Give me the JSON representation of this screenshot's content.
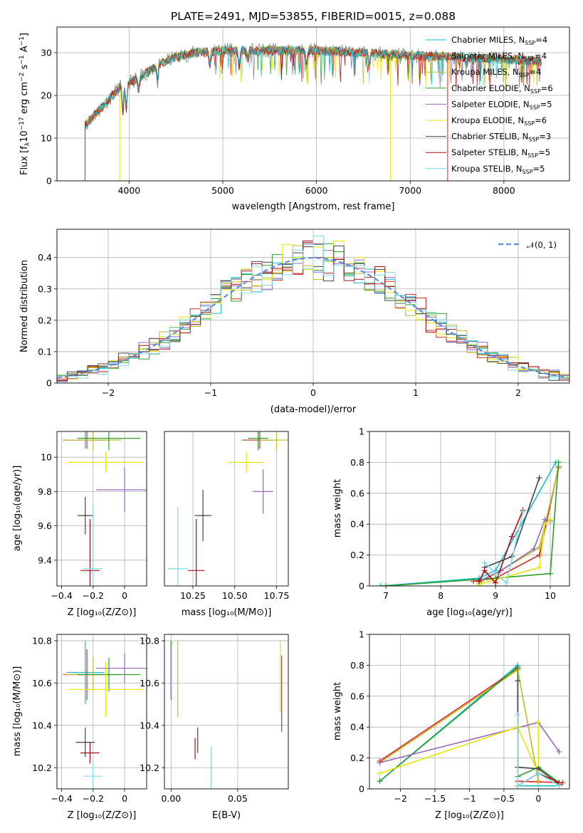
{
  "title": "PLATE=2491, MJD=53855, FIBERID=0015, z=0.088",
  "colors": {
    "Chabrier MILES": "#17becf",
    "Salpeter MILES": "#d62728",
    "Kroupa MILES": "#bcbd22",
    "Chabrier ELODIE": "#2ca02c",
    "Salpeter ELODIE": "#9467bd",
    "Kroupa ELODIE": "#e6e600",
    "Chabrier STELIB": "#444444",
    "Salpeter STELIB": "#a50f15",
    "Kroupa STELIB": "#7fd8e6"
  },
  "legend_spectrum": [
    {
      "main": "Chabrier MILES, N",
      "sub": "SSP",
      "tail": "=4"
    },
    {
      "main": "Salpeter MILES, N",
      "sub": "SSP",
      "tail": "=4"
    },
    {
      "main": "Kroupa MILES, N",
      "sub": "SSP",
      "tail": "=4"
    },
    {
      "main": "Chabrier ELODIE, N",
      "sub": "SSP",
      "tail": "=6"
    },
    {
      "main": "Salpeter ELODIE, N",
      "sub": "SSP",
      "tail": "=5"
    },
    {
      "main": "Kroupa ELODIE, N",
      "sub": "SSP",
      "tail": "=6"
    },
    {
      "main": "Chabrier STELIB, N",
      "sub": "SSP",
      "tail": "=3"
    },
    {
      "main": "Salpeter STELIB, N",
      "sub": "SSP",
      "tail": "=5"
    },
    {
      "main": "Kroupa STELIB, N",
      "sub": "SSP",
      "tail": "=5"
    }
  ],
  "legend_hist": "𝒩(0, 1)",
  "chart_data": [
    {
      "type": "line",
      "xlabel": "wavelength [Angstrom, rest frame]",
      "ylabel_parts": [
        "Flux [f",
        "λ",
        "10",
        "−17",
        " erg cm",
        "−2",
        " s",
        "−1",
        " A",
        "−1",
        "]"
      ],
      "xlim": [
        3230,
        8700
      ],
      "ylim": [
        0,
        36
      ],
      "xticks": [
        4000,
        5000,
        6000,
        7000,
        8000
      ],
      "yticks": [
        0,
        10,
        20,
        30
      ],
      "continuum_points": [
        [
          3530,
          13
        ],
        [
          3700,
          17
        ],
        [
          3900,
          22
        ],
        [
          4100,
          24
        ],
        [
          4300,
          27
        ],
        [
          4500,
          29
        ],
        [
          4700,
          30
        ],
        [
          5000,
          30.5
        ],
        [
          5500,
          30.5
        ],
        [
          6000,
          30.5
        ],
        [
          6500,
          30
        ],
        [
          7000,
          29.3
        ],
        [
          7500,
          29
        ],
        [
          8000,
          28.5
        ],
        [
          8400,
          28
        ]
      ],
      "absorption_lines": [
        [
          3934,
          6
        ],
        [
          3969,
          6
        ],
        [
          4102,
          3
        ],
        [
          4304,
          4
        ],
        [
          4861,
          3
        ],
        [
          5175,
          4
        ],
        [
          5270,
          2
        ],
        [
          5893,
          4
        ],
        [
          6563,
          3
        ],
        [
          7600,
          2
        ]
      ]
    },
    {
      "type": "line",
      "xlabel": "(data-model)/error",
      "ylabel": "Normed distribution",
      "xlim": [
        -2.5,
        2.5
      ],
      "ylim": [
        0,
        0.49
      ],
      "xticks": [
        -2,
        -1,
        0,
        1,
        2
      ],
      "yticks": [
        0.0,
        0.1,
        0.2,
        0.3,
        0.4
      ],
      "bin_width": 0.1,
      "gaussian": "N(0,1)"
    },
    {
      "type": "scatter",
      "xlabel": "Z [log₁₀(Z/Z⊙)]",
      "ylabel": "age  [log₁₀(age/yr)]",
      "xlim": [
        -0.43,
        0.14
      ],
      "ylim": [
        9.25,
        10.15
      ],
      "xticks": [
        -0.4,
        -0.2,
        0.0
      ],
      "yticks": [
        9.4,
        9.6,
        9.8,
        10.0
      ],
      "points": [
        {
          "x": -0.25,
          "y": 10.1,
          "xerr": 0.12,
          "yerr": 0.05
        },
        {
          "x": -0.24,
          "y": 10.1,
          "xerr": 0.15,
          "yerr": 0.05
        },
        {
          "x": -0.2,
          "y": 10.1,
          "xerr": 0.18,
          "yerr": 0.06
        },
        {
          "x": -0.1,
          "y": 10.11,
          "xerr": 0.2,
          "yerr": 0.07
        },
        {
          "x": 0.0,
          "y": 9.81,
          "xerr": 0.18,
          "yerr": 0.13
        },
        {
          "x": -0.12,
          "y": 9.97,
          "xerr": 0.24,
          "yerr": 0.06
        },
        {
          "x": -0.25,
          "y": 9.66,
          "xerr": 0.05,
          "yerr": 0.11
        },
        {
          "x": -0.22,
          "y": 9.34,
          "xerr": 0.06,
          "yerr": 0.3
        },
        {
          "x": -0.2,
          "y": 9.35,
          "xerr": 0.06,
          "yerr": 0.38
        }
      ]
    },
    {
      "type": "scatter",
      "xlabel": "mass [log₁₀(M/M⊙)]",
      "ylabel": "",
      "xlim": [
        10.08,
        10.82
      ],
      "ylim": [
        9.25,
        10.15
      ],
      "xticks": [
        10.25,
        10.5,
        10.75
      ],
      "ytick_labels": [
        "9.4",
        "9.6",
        "9.8",
        "10.0"
      ],
      "xtick_labels": [
        "10.25",
        "10.50",
        "10.75"
      ],
      "points": [
        {
          "x": 10.64,
          "y": 10.1,
          "xerr": 0.1,
          "yerr": 0.05
        },
        {
          "x": 10.65,
          "y": 10.1,
          "xerr": 0.1,
          "yerr": 0.05
        },
        {
          "x": 10.75,
          "y": 10.1,
          "xerr": 0.1,
          "yerr": 0.06
        },
        {
          "x": 10.64,
          "y": 10.11,
          "xerr": 0.06,
          "yerr": 0.07
        },
        {
          "x": 10.67,
          "y": 9.8,
          "xerr": 0.06,
          "yerr": 0.13
        },
        {
          "x": 10.57,
          "y": 9.97,
          "xerr": 0.1,
          "yerr": 0.06
        },
        {
          "x": 10.31,
          "y": 9.66,
          "xerr": 0.05,
          "yerr": 0.15
        },
        {
          "x": 10.27,
          "y": 9.34,
          "xerr": 0.05,
          "yerr": 0.3
        },
        {
          "x": 10.16,
          "y": 9.35,
          "xerr": 0.06,
          "yerr": 0.36
        }
      ]
    },
    {
      "type": "line",
      "xlabel": "age  [log₁₀(age/yr)]",
      "ylabel": "mass weight",
      "xlim": [
        6.7,
        10.35
      ],
      "ylim": [
        0,
        1.0
      ],
      "xticks": [
        7,
        8,
        9,
        10
      ],
      "yticks": [
        0.0,
        0.2,
        0.4,
        0.6,
        0.8,
        1.0
      ]
    },
    {
      "type": "scatter",
      "xlabel": "Z [log₁₀(Z/Z⊙)]",
      "ylabel": "mass [log₁₀(M/M⊙)]",
      "xlim": [
        -0.43,
        0.14
      ],
      "ylim": [
        10.1,
        10.83
      ],
      "xticks": [
        -0.4,
        -0.2,
        0.0
      ],
      "yticks": [
        10.2,
        10.4,
        10.6,
        10.8
      ]
    },
    {
      "type": "scatter",
      "xlabel": "E(B-V)",
      "ylabel": "",
      "xlim": [
        -0.005,
        0.088
      ],
      "ylim": [
        10.1,
        10.83
      ],
      "xticks": [
        0.0,
        0.05
      ],
      "xtick_labels": [
        "0.00",
        "0.05"
      ],
      "yticks": [
        10.2,
        10.4,
        10.6,
        10.8
      ]
    },
    {
      "type": "line",
      "xlabel": "Z [log₁₀(Z/Z⊙)]",
      "ylabel": "mass weight",
      "xlim": [
        -2.45,
        0.45
      ],
      "ylim": [
        0,
        1.0
      ],
      "xticks": [
        -2.0,
        -1.5,
        -1.0,
        -0.5,
        0.0
      ],
      "yticks": [
        0.0,
        0.2,
        0.4,
        0.6,
        0.8,
        1.0
      ]
    }
  ]
}
